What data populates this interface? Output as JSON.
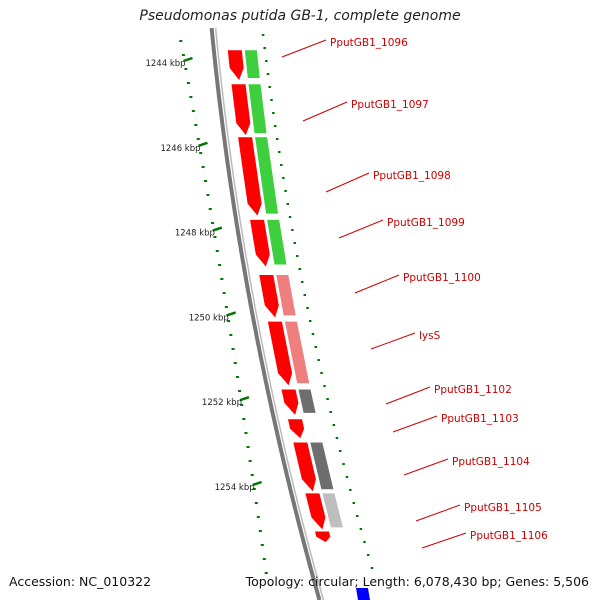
{
  "title": "Pseudomonas putida GB-1, complete genome",
  "footer": {
    "accession": "Accession: NC_010322",
    "stats": "Topology: circular; Length: 6,078,430 bp; Genes: 5,506"
  },
  "colors": {
    "cds": "#ff0000",
    "cog_green": "#33cc33",
    "cog_pink": "#ee7777",
    "cog_dark": "#666666",
    "cog_light": "#bbbbbb",
    "tick": "#007700",
    "backbone": "#777777",
    "label": "#cc0000",
    "other_feature": "#0000ff"
  },
  "kbp_ticks": [
    {
      "kbp": 1244,
      "label": "1244 kbp"
    },
    {
      "kbp": 1246,
      "label": "1246 kbp"
    },
    {
      "kbp": 1248,
      "label": "1248 kbp"
    },
    {
      "kbp": 1250,
      "label": "1250 kbp"
    },
    {
      "kbp": 1252,
      "label": "1252 kbp"
    },
    {
      "kbp": 1254,
      "label": "1254 kbp"
    }
  ],
  "genes": [
    {
      "label": "PputGB1_1096",
      "start_kbp": 1243.7,
      "end_kbp": 1244.4,
      "strand": "forward",
      "category": "cog_green"
    },
    {
      "label": "PputGB1_1097",
      "start_kbp": 1244.5,
      "end_kbp": 1245.7,
      "strand": "forward",
      "category": "cog_green"
    },
    {
      "label": "PputGB1_1098",
      "start_kbp": 1245.75,
      "end_kbp": 1247.6,
      "strand": "forward",
      "category": "cog_green"
    },
    {
      "label": "PputGB1_1099",
      "start_kbp": 1247.7,
      "end_kbp": 1248.8,
      "strand": "forward",
      "category": "cog_green"
    },
    {
      "label": "PputGB1_1100",
      "start_kbp": 1249.0,
      "end_kbp": 1250.0,
      "strand": "forward",
      "category": "cog_pink"
    },
    {
      "label": "lysS",
      "start_kbp": 1250.1,
      "end_kbp": 1251.6,
      "strand": "forward",
      "category": "cog_pink"
    },
    {
      "label": "PputGB1_1102",
      "start_kbp": 1251.7,
      "end_kbp": 1252.3,
      "strand": "forward",
      "category": "cog_dark"
    },
    {
      "label": "PputGB1_1103",
      "start_kbp": 1252.4,
      "end_kbp": 1252.85,
      "strand": "forward",
      "category": "none"
    },
    {
      "label": "PputGB1_1104",
      "start_kbp": 1252.95,
      "end_kbp": 1254.1,
      "strand": "forward",
      "category": "cog_dark"
    },
    {
      "label": "PputGB1_1105",
      "start_kbp": 1254.15,
      "end_kbp": 1255.0,
      "strand": "forward",
      "category": "cog_light"
    },
    {
      "label": "PputGB1_1106",
      "start_kbp": 1255.05,
      "end_kbp": 1255.3,
      "strand": "forward",
      "category": "none"
    }
  ]
}
